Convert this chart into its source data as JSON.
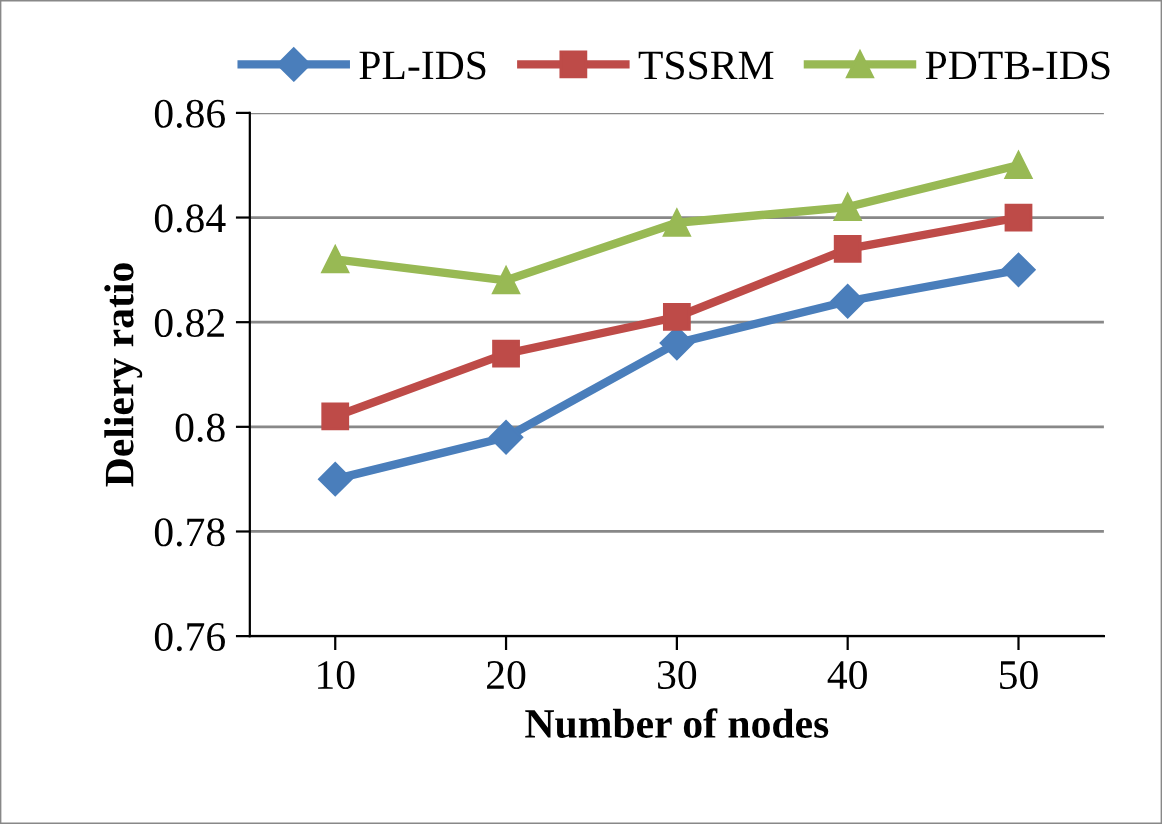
{
  "chart_data": {
    "type": "line",
    "xlabel": "Number of nodes",
    "ylabel": "Deliery ratio",
    "categories": [
      "10",
      "20",
      "30",
      "40",
      "50"
    ],
    "series": [
      {
        "name": "PL-IDS",
        "color": "#4a7ebb",
        "marker": "diamond",
        "values": [
          0.79,
          0.798,
          0.816,
          0.824,
          0.83
        ]
      },
      {
        "name": "TSSRM",
        "color": "#be4b48",
        "marker": "square",
        "values": [
          0.802,
          0.814,
          0.821,
          0.834,
          0.84
        ]
      },
      {
        "name": "PDTB-IDS",
        "color": "#98b954",
        "marker": "triangle",
        "values": [
          0.832,
          0.828,
          0.839,
          0.842,
          0.85
        ]
      }
    ],
    "ylim": [
      0.76,
      0.86
    ],
    "yticks": [
      0.76,
      0.78,
      {
        "value": 0.8,
        "label": "0.8"
      },
      0.82,
      0.84,
      0.86
    ],
    "grid": "y",
    "legend": "top",
    "line_style": "solid"
  }
}
